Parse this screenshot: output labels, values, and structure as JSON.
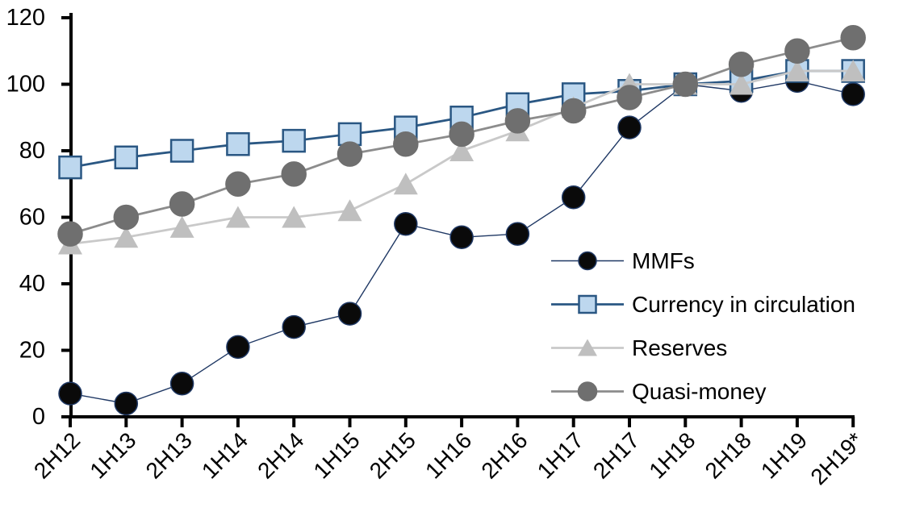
{
  "chart_data": {
    "type": "line",
    "title": "",
    "background": "#FFFFFF",
    "axis_color": "#000000",
    "categories": [
      "2H12",
      "1H13",
      "2H13",
      "1H14",
      "2H14",
      "1H15",
      "2H15",
      "1H16",
      "2H16",
      "1H17",
      "2H17",
      "1H18",
      "2H18",
      "1H19",
      "2H19*"
    ],
    "series": [
      {
        "name": "MMFs",
        "marker": "circle",
        "marker_fill": "#0A0A0A",
        "marker_stroke": "#1F3864",
        "line_color": "#1F3864",
        "line_width": 1.4,
        "marker_size": 28,
        "values": [
          7,
          4,
          10,
          21,
          27,
          31,
          58,
          54,
          55,
          66,
          87,
          100,
          98,
          101,
          97
        ]
      },
      {
        "name": "Currency in circulation",
        "marker": "square",
        "marker_fill": "#BDD7EE",
        "marker_stroke": "#2A5783",
        "line_color": "#2A5783",
        "line_width": 2.8,
        "marker_size": 27,
        "values": [
          75,
          78,
          80,
          82,
          83,
          85,
          87,
          90,
          94,
          97,
          98,
          100,
          101,
          104,
          104
        ]
      },
      {
        "name": "Reserves",
        "marker": "triangle",
        "marker_fill": "#BFBFBF",
        "marker_stroke": "#BFBFBF",
        "line_color": "#C9C9C9",
        "line_width": 2.8,
        "marker_size": 28,
        "values": [
          52,
          54,
          57,
          60,
          60,
          62,
          70,
          80,
          86,
          93,
          100,
          100,
          100,
          104,
          104
        ]
      },
      {
        "name": "Quasi-money",
        "marker": "circle",
        "marker_fill": "#6F6F6F",
        "marker_stroke": "#6F6F6F",
        "line_color": "#8C8C8C",
        "line_width": 2.8,
        "marker_size": 30,
        "values": [
          55,
          60,
          64,
          70,
          73,
          79,
          82,
          85,
          89,
          92,
          96,
          100,
          106,
          110,
          114
        ]
      }
    ],
    "y_axis": {
      "min": 0,
      "max": 120,
      "tick_step": 20,
      "tick_labels": [
        "0",
        "20",
        "40",
        "60",
        "80",
        "100",
        "120"
      ]
    },
    "x_axis": {
      "rotation": -45,
      "tick_labels": [
        "2H12",
        "1H13",
        "2H13",
        "1H14",
        "2H14",
        "1H15",
        "2H15",
        "1H16",
        "2H16",
        "1H17",
        "2H17",
        "1H18",
        "2H18",
        "1H19",
        "2H19*"
      ]
    },
    "legend": {
      "position": "middle-right",
      "items": [
        "MMFs",
        "Currency in circulation",
        "Reserves",
        "Quasi-money"
      ]
    },
    "grid": "off"
  }
}
